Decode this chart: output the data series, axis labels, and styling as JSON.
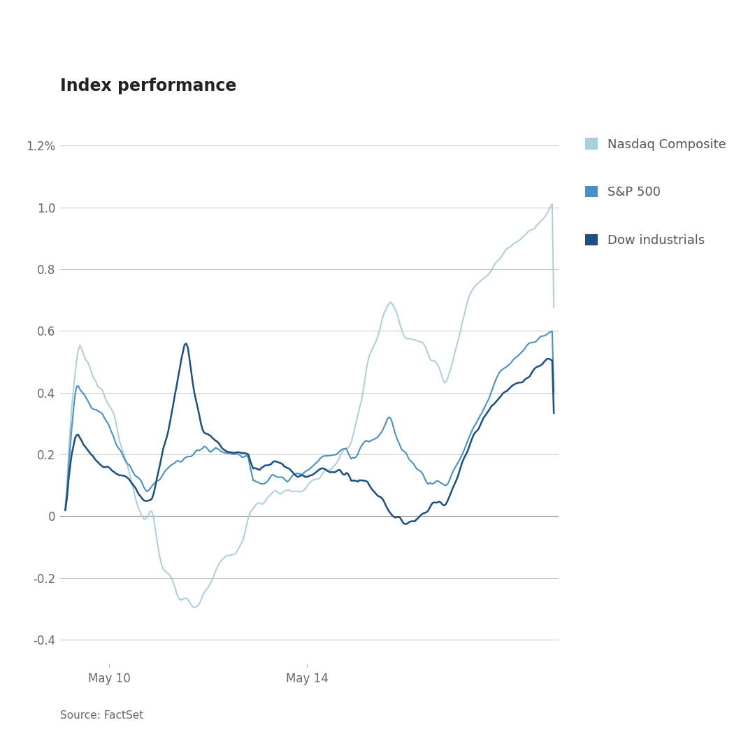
{
  "title": "Index performance",
  "source": "Source: FactSet",
  "yticks": [
    -0.4,
    -0.2,
    0.0,
    0.2,
    0.4,
    0.6,
    0.8,
    1.0,
    1.2
  ],
  "ytick_labels": [
    "-0.4",
    "-0.2",
    "0",
    "0.2",
    "0.4",
    "0.6",
    "0.8",
    "1.0",
    "1.2%"
  ],
  "xtick_labels": [
    "May 10",
    "May 14"
  ],
  "ylim": [
    -0.48,
    1.28
  ],
  "color_nasdaq": "#a8cfe0",
  "color_sp500": "#4a90c4",
  "color_dow": "#1c4f82",
  "legend_labels": [
    "Nasdaq Composite",
    "S&P 500",
    "Dow industrials"
  ],
  "background_color": "#ffffff",
  "grid_color": "#c8c8c8",
  "zero_line_color": "#888888",
  "title_fontsize": 17,
  "label_fontsize": 12,
  "source_fontsize": 11
}
